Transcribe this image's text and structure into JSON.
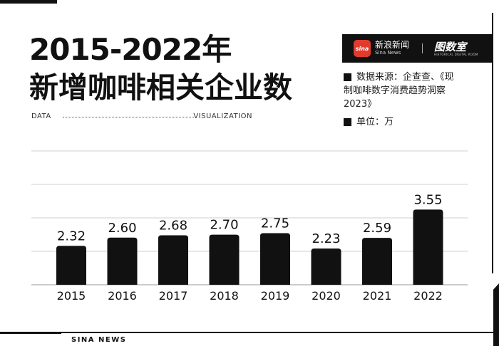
{
  "title": {
    "line1": "2015-2022年",
    "line2_highlight": "新增",
    "line2_rest": "咖啡相关企业数"
  },
  "tagline": {
    "left": "DATA",
    "right": "VISUALIZATION"
  },
  "brand": {
    "logo_text": "sina",
    "name_cn": "新浪新闻",
    "name_en": "Sina News",
    "partner_cn": "图数室",
    "partner_en": "HISTORICAL DIGITAL ROOM",
    "accent_color": "#e23b2e"
  },
  "source": {
    "line1": "数据来源：企查查、《现",
    "line2": "制咖啡数字消费趋势洞察",
    "line3": "2023》"
  },
  "unit": "单位：万",
  "footer": "SINA NEWS",
  "highlight_color": "#e8742f",
  "chart_data": {
    "type": "bar",
    "categories": [
      "2015",
      "2016",
      "2017",
      "2018",
      "2019",
      "2020",
      "2021",
      "2022"
    ],
    "values": [
      2.32,
      2.6,
      2.68,
      2.7,
      2.75,
      2.23,
      2.59,
      3.55
    ],
    "value_labels": [
      "2.32",
      "2.60",
      "2.68",
      "2.70",
      "2.75",
      "2.23",
      "2.59",
      "3.55"
    ],
    "bar_color": "#111111",
    "grid": true,
    "legend": "none"
  }
}
